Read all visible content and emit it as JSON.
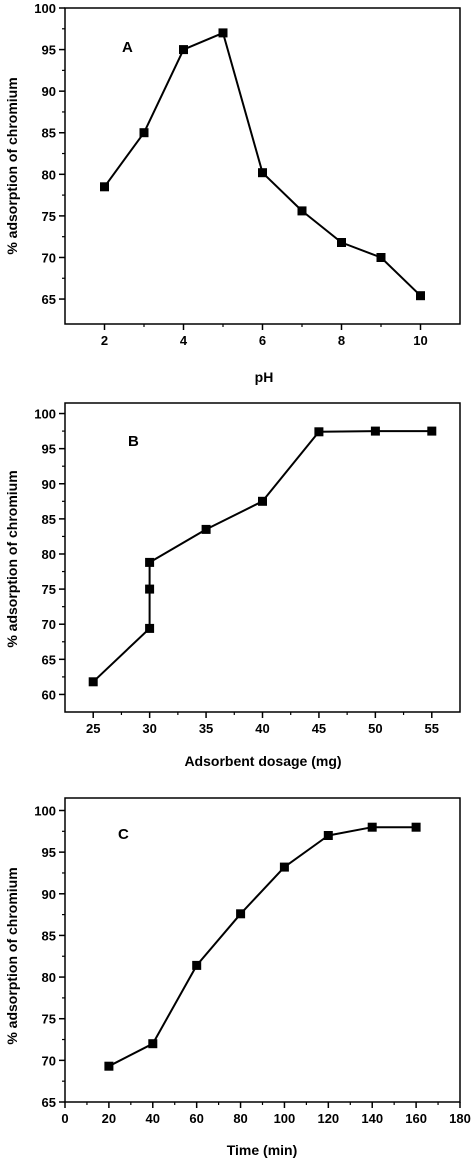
{
  "chart_data": [
    {
      "type": "line",
      "panel_label": "A",
      "xlabel": "pH",
      "ylabel": "% adsorption of chromium",
      "xlim": [
        1,
        11
      ],
      "ylim": [
        62,
        100
      ],
      "xticks": [
        2,
        4,
        6,
        8,
        10
      ],
      "yticks": [
        65,
        70,
        75,
        80,
        85,
        90,
        95,
        100
      ],
      "xtick_labels": [
        "2",
        "4",
        "6",
        "8",
        "10"
      ],
      "ytick_labels": [
        "65",
        "70",
        "75",
        "80",
        "85",
        "90",
        "95",
        "100"
      ],
      "marker": "square",
      "grid": false,
      "series": [
        {
          "x": [
            2,
            3,
            4,
            5,
            6,
            7,
            8,
            9,
            10
          ],
          "y": [
            78.5,
            85.0,
            95.0,
            97.0,
            80.2,
            75.6,
            71.8,
            70.0,
            65.4
          ]
        }
      ]
    },
    {
      "type": "line",
      "panel_label": "B",
      "xlabel": "Adsorbent dosage (mg)",
      "ylabel": "% adsorption of chromium",
      "xlim": [
        22.5,
        57.5
      ],
      "ylim": [
        57.5,
        101.5
      ],
      "xticks": [
        25,
        30,
        35,
        40,
        45,
        50,
        55
      ],
      "yticks": [
        60,
        65,
        70,
        75,
        80,
        85,
        90,
        95,
        100
      ],
      "xtick_labels": [
        "25",
        "30",
        "35",
        "40",
        "45",
        "50",
        "55"
      ],
      "ytick_labels": [
        "60",
        "65",
        "70",
        "75",
        "80",
        "85",
        "90",
        "95",
        "100"
      ],
      "marker": "square",
      "grid": false,
      "series": [
        {
          "x": [
            25,
            30,
            30,
            30,
            35,
            40,
            45,
            50,
            55
          ],
          "y": [
            61.8,
            69.4,
            75.0,
            78.8,
            83.5,
            87.5,
            97.4,
            97.5,
            97.5
          ]
        }
      ]
    },
    {
      "type": "line",
      "panel_label": "C",
      "xlabel": "Time (min)",
      "ylabel": "% adsorption of chromium",
      "xlim": [
        0,
        180
      ],
      "ylim": [
        65,
        101.5
      ],
      "xticks": [
        0,
        20,
        40,
        60,
        80,
        100,
        120,
        140,
        160,
        180
      ],
      "yticks": [
        65,
        70,
        75,
        80,
        85,
        90,
        95,
        100
      ],
      "xtick_labels": [
        "0",
        "20",
        "40",
        "60",
        "80",
        "100",
        "120",
        "140",
        "160",
        "180"
      ],
      "ytick_labels": [
        "65",
        "70",
        "75",
        "80",
        "85",
        "90",
        "95",
        "100"
      ],
      "marker": "square",
      "grid": false,
      "series": [
        {
          "x": [
            20,
            40,
            60,
            80,
            100,
            120,
            140,
            160
          ],
          "y": [
            69.3,
            72.0,
            81.4,
            87.6,
            93.2,
            97.0,
            98.0,
            98.0
          ]
        }
      ]
    }
  ],
  "style": {
    "line_color": "#000000",
    "marker_color": "#000000",
    "background": "#ffffff"
  }
}
